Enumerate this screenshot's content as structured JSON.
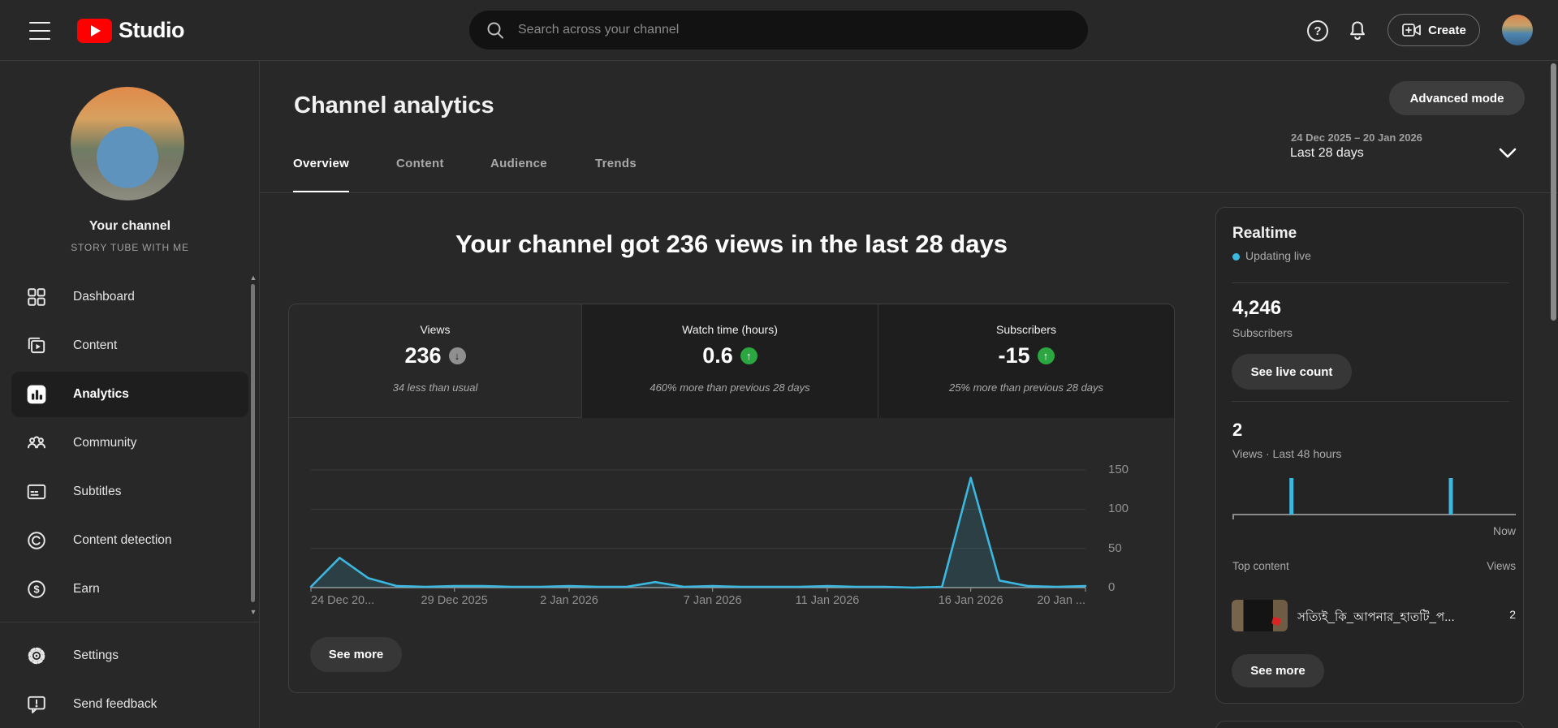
{
  "topbar": {
    "brand": "Studio",
    "search_placeholder": "Search across your channel",
    "create_label": "Create"
  },
  "icons": {
    "help_glyph": "?",
    "scroll_up_glyph": "▲",
    "scroll_down_glyph": "▼",
    "earn_glyph": "$",
    "feedback_glyph": "!"
  },
  "sidebar": {
    "channel_title": "Your channel",
    "channel_name": "STORY TUBE WITH ME",
    "items": [
      {
        "label": "Dashboard",
        "icon": "dashboard",
        "active": false
      },
      {
        "label": "Content",
        "icon": "content",
        "active": false
      },
      {
        "label": "Analytics",
        "icon": "analytics",
        "active": true
      },
      {
        "label": "Community",
        "icon": "community",
        "active": false
      },
      {
        "label": "Subtitles",
        "icon": "subtitles",
        "active": false
      },
      {
        "label": "Content detection",
        "icon": "content-detection",
        "active": false
      },
      {
        "label": "Earn",
        "icon": "earn",
        "active": false
      }
    ],
    "footer_items": [
      {
        "label": "Settings",
        "icon": "settings"
      },
      {
        "label": "Send feedback",
        "icon": "send-feedback"
      }
    ]
  },
  "header": {
    "title": "Channel analytics",
    "tabs": [
      {
        "label": "Overview",
        "active": true
      },
      {
        "label": "Content",
        "active": false
      },
      {
        "label": "Audience",
        "active": false
      },
      {
        "label": "Trends",
        "active": false
      }
    ],
    "advanced_mode_label": "Advanced mode",
    "date_range": "24 Dec 2025 – 20 Jan 2026",
    "date_preset": "Last 28 days"
  },
  "main_card": {
    "headline": "Your channel got 236 views in the last 28 days",
    "metrics": [
      {
        "label": "Views",
        "value": "236",
        "trend": "down",
        "badge_color": "gray",
        "note": "34 less than usual",
        "selected": true
      },
      {
        "label": "Watch time (hours)",
        "value": "0.6",
        "trend": "up",
        "badge_color": "green",
        "note": "460% more than previous 28 days",
        "selected": false
      },
      {
        "label": "Subscribers",
        "value": "-15",
        "trend": "up",
        "badge_color": "green",
        "note": "25% more than previous 28 days",
        "selected": false
      }
    ],
    "see_more_label": "See more"
  },
  "chart_data": [
    {
      "id": "views-last-28-days",
      "type": "line",
      "title": "Your channel got 236 views in the last 28 days",
      "x_unit": "day",
      "x_range": [
        "24 Dec 2025",
        "20 Jan 2026"
      ],
      "series": [
        {
          "name": "Views",
          "values": [
            1,
            38,
            12,
            2,
            1,
            2,
            2,
            1,
            1,
            2,
            1,
            1,
            7,
            1,
            2,
            1,
            1,
            1,
            2,
            1,
            1,
            0,
            1,
            140,
            9,
            2,
            1,
            2
          ]
        }
      ],
      "x_tick_labels": [
        "24 Dec 20...",
        "29 Dec 2025",
        "2 Jan 2026",
        "7 Jan 2026",
        "11 Jan 2026",
        "16 Jan 2026",
        "20 Jan ..."
      ],
      "x_tick_day_index": [
        0,
        5,
        9,
        14,
        18,
        23,
        27
      ],
      "y_ticks": [
        0,
        50,
        100,
        150
      ],
      "ylim": [
        0,
        155
      ],
      "grid": true,
      "legend": "none",
      "line_color": "#3cb8e0"
    },
    {
      "id": "realtime-views-48h",
      "type": "bar",
      "title": "Views · Last 48 hours",
      "window_hours": 48,
      "total_views": 2,
      "bars": [
        {
          "hours_ago": 38,
          "views": 1
        },
        {
          "hours_ago": 11,
          "views": 1
        }
      ],
      "x_end_label": "Now",
      "bar_color": "#3cb8e0"
    }
  ],
  "realtime": {
    "title": "Realtime",
    "status": "Updating live",
    "subscribers": "4,246",
    "subscribers_label": "Subscribers",
    "live_count_label": "See live count",
    "views_48h": "2",
    "views_48h_label": "Views · Last 48 hours",
    "now_label": "Now",
    "top_content_label": "Top content",
    "views_col_label": "Views",
    "items": [
      {
        "title": "সত্যিই_কি_আপনার_হাতটি_প...",
        "views": "2"
      }
    ],
    "see_more_label": "See more"
  },
  "colors": {
    "accent_blue": "#3cb8e0",
    "positive_green": "#2ba640",
    "neutral_badge": "#8f8f8f",
    "brand_red": "#ff0000",
    "card_border": "#3f3f3f",
    "page_bg": "#282828"
  }
}
